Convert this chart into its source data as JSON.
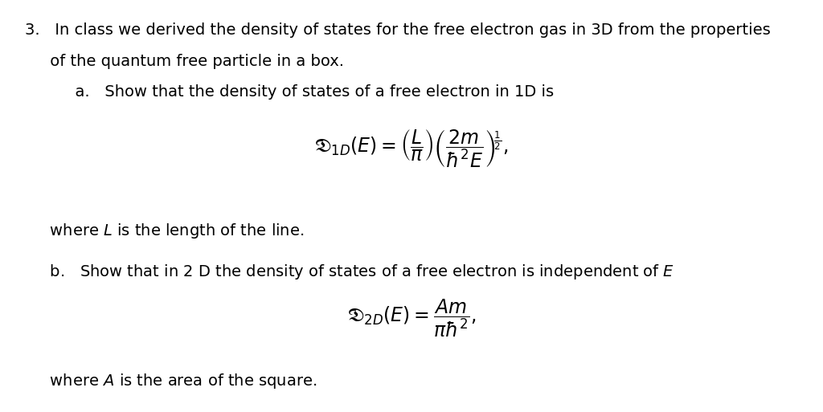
{
  "background_color": "#ffffff",
  "figsize": [
    10.24,
    5.13
  ],
  "dpi": 100,
  "line1": "3.   In class we derived the density of states for the free electron gas in 3D from the properties",
  "line2": "     of the quantum free particle in a box.",
  "line3": "          a.   Show that the density of states of a free electron in 1D is",
  "line4": "     where L is the length of the line.",
  "line5": "     b.   Show that in 2 D the density of states of a free electron is independent of E",
  "line6": "     where A is the area of the square.",
  "formula1": "$\\mathfrak{D}_{1D}(E) = \\left(\\dfrac{L}{\\pi}\\right)\\left(\\dfrac{2m}{\\hbar^2 E}\\right)^{\\!\\frac{1}{2}},$",
  "formula2": "$\\mathfrak{D}_{2D}(E) = \\dfrac{Am}{\\pi\\hbar^2},$",
  "text_fontsize": 14,
  "formula1_fontsize": 17,
  "formula2_fontsize": 17
}
